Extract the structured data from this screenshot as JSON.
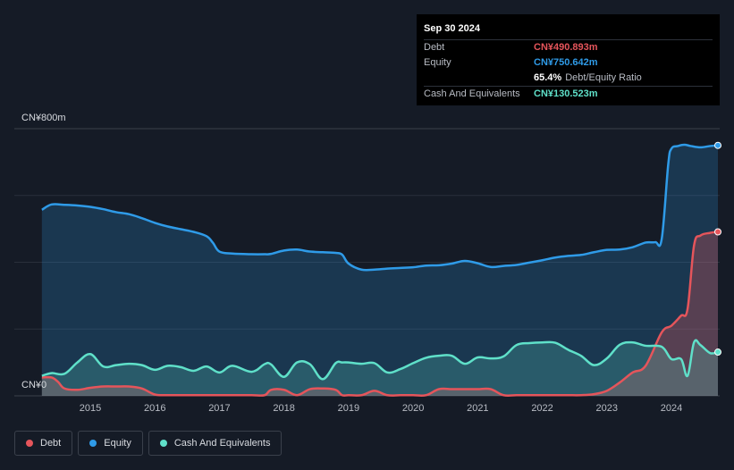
{
  "tooltip": {
    "date": "Sep 30 2024",
    "rows": [
      {
        "label": "Debt",
        "value": "CN¥490.893m",
        "color": "#e5555b"
      },
      {
        "label": "Equity",
        "value": "CN¥750.642m",
        "color": "#2f9be8"
      },
      {
        "label": "",
        "value": "65.4%",
        "suffix": "Debt/Equity Ratio",
        "color": "#ffffff"
      },
      {
        "label": "Cash And Equivalents",
        "value": "CN¥130.523m",
        "color": "#5fe0c9"
      }
    ]
  },
  "legend": [
    {
      "label": "Debt",
      "color": "#e5555b"
    },
    {
      "label": "Equity",
      "color": "#2f9be8"
    },
    {
      "label": "Cash And Equivalents",
      "color": "#5fe0c9"
    }
  ],
  "chart_data": {
    "type": "area",
    "ylim": [
      0,
      800
    ],
    "y_tick_labels": [
      "CN¥800m",
      "CN¥0"
    ],
    "x_ticks": [
      2015,
      2016,
      2017,
      2018,
      2019,
      2020,
      2021,
      2022,
      2023,
      2024
    ],
    "x_tick_labels": [
      "2015",
      "2016",
      "2017",
      "2018",
      "2019",
      "2020",
      "2021",
      "2022",
      "2023",
      "2024"
    ],
    "xlim": [
      2014.2,
      2024.75
    ],
    "grid": true,
    "series": [
      {
        "name": "Equity",
        "color": "#2f9be8",
        "x": [
          2014.25,
          2014.4,
          2014.6,
          2014.8,
          2015,
          2015.2,
          2015.4,
          2015.6,
          2015.8,
          2016,
          2016.2,
          2016.4,
          2016.6,
          2016.8,
          2016.9,
          2017,
          2017.2,
          2017.5,
          2017.7,
          2017.8,
          2018,
          2018.2,
          2018.4,
          2018.6,
          2018.8,
          2018.9,
          2019.0,
          2019.2,
          2019.4,
          2019.6,
          2019.8,
          2020,
          2020.2,
          2020.4,
          2020.6,
          2020.8,
          2021.0,
          2021.2,
          2021.4,
          2021.6,
          2021.8,
          2022.0,
          2022.2,
          2022.4,
          2022.6,
          2022.8,
          2023.0,
          2023.2,
          2023.4,
          2023.6,
          2023.75,
          2023.85,
          2023.95,
          2024.0,
          2024.1,
          2024.2,
          2024.3,
          2024.45,
          2024.6,
          2024.72
        ],
        "values": [
          557,
          573,
          572,
          570,
          566,
          559,
          550,
          544,
          532,
          518,
          507,
          499,
          491,
          478,
          458,
          432,
          426,
          424,
          424,
          425,
          435,
          438,
          432,
          430,
          428,
          423,
          396,
          378,
          378,
          381,
          383,
          385,
          390,
          391,
          396,
          404,
          397,
          386,
          389,
          392,
          399,
          406,
          414,
          419,
          422,
          430,
          437,
          438,
          445,
          459,
          460,
          470,
          692,
          740,
          748,
          752,
          748,
          744,
          748,
          750
        ]
      },
      {
        "name": "Debt",
        "color": "#e5555b",
        "x": [
          2014.25,
          2014.4,
          2014.5,
          2014.6,
          2014.8,
          2015,
          2015.2,
          2015.4,
          2015.6,
          2015.8,
          2016,
          2016.2,
          2016.4,
          2016.6,
          2016.8,
          2017,
          2017.2,
          2017.5,
          2017.7,
          2017.8,
          2018,
          2018.2,
          2018.4,
          2018.6,
          2018.8,
          2018.9,
          2019.0,
          2019.2,
          2019.4,
          2019.6,
          2019.8,
          2020,
          2020.2,
          2020.4,
          2020.6,
          2020.8,
          2021.0,
          2021.2,
          2021.4,
          2021.6,
          2021.8,
          2022.0,
          2022.2,
          2022.4,
          2022.6,
          2022.8,
          2023.0,
          2023.2,
          2023.4,
          2023.6,
          2023.85,
          2024.0,
          2024.15,
          2024.25,
          2024.35,
          2024.45,
          2024.6,
          2024.72
        ],
        "values": [
          55,
          55,
          42,
          22,
          18,
          24,
          28,
          28,
          28,
          22,
          4,
          2,
          2,
          2,
          2,
          2,
          2,
          2,
          2,
          18,
          18,
          2,
          20,
          22,
          18,
          2,
          2,
          2,
          15,
          2,
          2,
          2,
          2,
          20,
          20,
          20,
          20,
          20,
          2,
          2,
          2,
          2,
          2,
          2,
          2,
          5,
          15,
          40,
          70,
          90,
          190,
          210,
          240,
          260,
          450,
          480,
          488,
          491
        ]
      },
      {
        "name": "Cash And Equivalents",
        "color": "#5fe0c9",
        "x": [
          2014.25,
          2014.4,
          2014.6,
          2014.8,
          2015,
          2015.2,
          2015.4,
          2015.6,
          2015.8,
          2016,
          2016.2,
          2016.4,
          2016.6,
          2016.8,
          2017,
          2017.2,
          2017.5,
          2017.7,
          2017.8,
          2018,
          2018.2,
          2018.4,
          2018.6,
          2018.8,
          2018.9,
          2019.0,
          2019.2,
          2019.4,
          2019.6,
          2019.8,
          2020,
          2020.2,
          2020.4,
          2020.6,
          2020.8,
          2021.0,
          2021.2,
          2021.4,
          2021.6,
          2021.8,
          2022.0,
          2022.2,
          2022.4,
          2022.6,
          2022.8,
          2023.0,
          2023.2,
          2023.4,
          2023.6,
          2023.85,
          2024.0,
          2024.15,
          2024.25,
          2024.35,
          2024.45,
          2024.6,
          2024.72
        ],
        "values": [
          60,
          68,
          66,
          100,
          125,
          88,
          92,
          96,
          92,
          78,
          90,
          86,
          75,
          88,
          70,
          90,
          72,
          95,
          94,
          57,
          100,
          95,
          50,
          98,
          100,
          100,
          96,
          98,
          70,
          80,
          98,
          114,
          120,
          120,
          96,
          115,
          112,
          118,
          152,
          158,
          160,
          159,
          138,
          120,
          92,
          112,
          153,
          160,
          150,
          147,
          110,
          110,
          60,
          160,
          152,
          128,
          131
        ]
      }
    ]
  }
}
